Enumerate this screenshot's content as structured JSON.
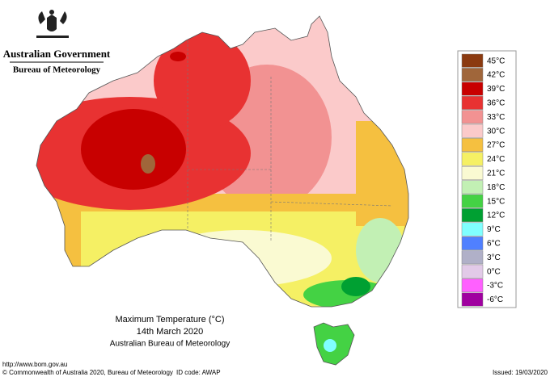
{
  "header": {
    "government": "Australian Government",
    "agency": "Bureau of Meteorology"
  },
  "legend": [
    {
      "label": "45°C",
      "color": "#8b3a10"
    },
    {
      "label": "42°C",
      "color": "#a0663a"
    },
    {
      "label": "39°C",
      "color": "#c80000"
    },
    {
      "label": "36°C",
      "color": "#e83232"
    },
    {
      "label": "33°C",
      "color": "#f29292"
    },
    {
      "label": "30°C",
      "color": "#fbcaca"
    },
    {
      "label": "27°C",
      "color": "#f5c040"
    },
    {
      "label": "24°C",
      "color": "#f5f064"
    },
    {
      "label": "21°C",
      "color": "#fafad2"
    },
    {
      "label": "18°C",
      "color": "#c2f0b4"
    },
    {
      "label": "15°C",
      "color": "#44d244"
    },
    {
      "label": "12°C",
      "color": "#00a032"
    },
    {
      "label": "9°C",
      "color": "#80ffff"
    },
    {
      "label": "6°C",
      "color": "#5080ff"
    },
    {
      "label": "3°C",
      "color": "#b0b0c8"
    },
    {
      "label": "0°C",
      "color": "#e2cae8"
    },
    {
      "label": "-3°C",
      "color": "#ff60ff"
    },
    {
      "label": "-6°C",
      "color": "#a000a0"
    }
  ],
  "caption": {
    "title": "Maximum Temperature (°C)",
    "date": "14th March 2020",
    "source": "Australian Bureau of Meteorology"
  },
  "footer": {
    "url": "http://www.bom.gov.au",
    "copyright": "© Commonwealth of Australia 2020, Bureau of Meteorology",
    "id_code": "ID code: AWAP",
    "issued": "Issued: 19/03/2020"
  }
}
